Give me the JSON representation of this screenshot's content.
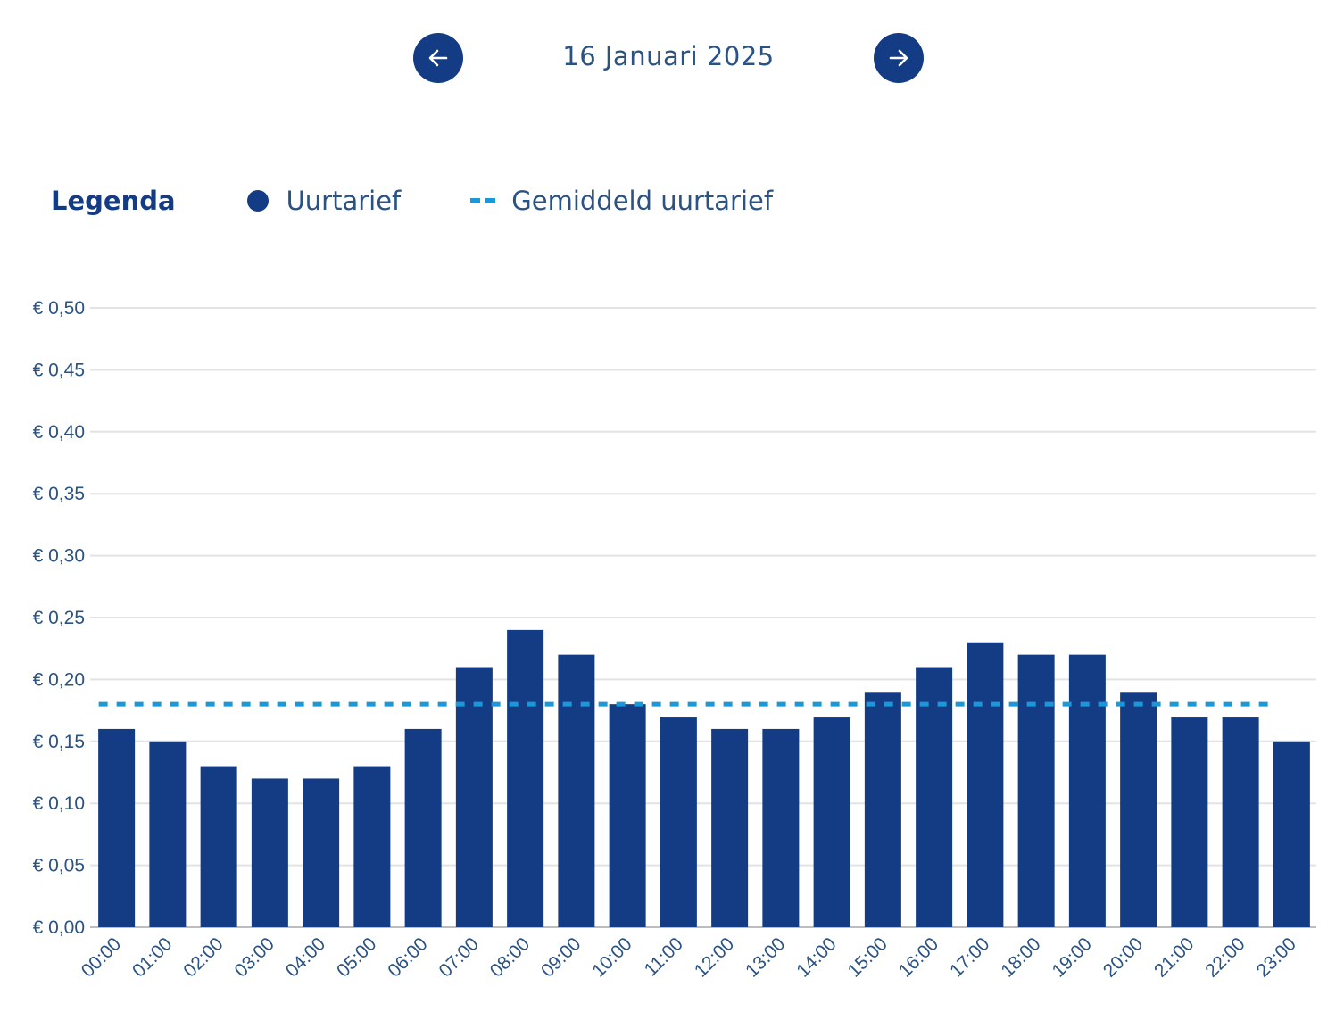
{
  "header": {
    "date": "16 Januari 2025",
    "prev_icon": "arrow-left-icon",
    "next_icon": "arrow-right-icon"
  },
  "legend": {
    "title": "Legenda",
    "items": [
      {
        "label": "Uurtarief",
        "marker": "circle",
        "color": "#133c85"
      },
      {
        "label": "Gemiddeld uurtarief",
        "marker": "dashed-line",
        "color": "#1a98d9"
      }
    ]
  },
  "chart_data": {
    "type": "bar",
    "title": "",
    "xlabel": "",
    "ylabel": "",
    "ylim": [
      0,
      0.5
    ],
    "grid": true,
    "legend_position": "top-left",
    "yticks": [
      0,
      0.05,
      0.1,
      0.15,
      0.2,
      0.25,
      0.3,
      0.35,
      0.4,
      0.45,
      0.5
    ],
    "ytick_labels": [
      "€ 0,00",
      "€ 0,05",
      "€ 0,10",
      "€ 0,15",
      "€ 0,20",
      "€ 0,25",
      "€ 0,30",
      "€ 0,35",
      "€ 0,40",
      "€ 0,45",
      "€ 0,50"
    ],
    "categories": [
      "00:00",
      "01:00",
      "02:00",
      "03:00",
      "04:00",
      "05:00",
      "06:00",
      "07:00",
      "08:00",
      "09:00",
      "10:00",
      "11:00",
      "12:00",
      "13:00",
      "14:00",
      "15:00",
      "16:00",
      "17:00",
      "18:00",
      "19:00",
      "20:00",
      "21:00",
      "22:00",
      "23:00"
    ],
    "series": [
      {
        "name": "Uurtarief",
        "type": "bar",
        "color": "#133c85",
        "values": [
          0.16,
          0.15,
          0.13,
          0.12,
          0.12,
          0.13,
          0.16,
          0.21,
          0.24,
          0.22,
          0.18,
          0.17,
          0.16,
          0.16,
          0.17,
          0.19,
          0.21,
          0.23,
          0.22,
          0.22,
          0.19,
          0.17,
          0.17,
          0.15
        ]
      },
      {
        "name": "Gemiddeld uurtarief",
        "type": "dashed-line",
        "color": "#1a98d9",
        "value": 0.18
      }
    ]
  }
}
